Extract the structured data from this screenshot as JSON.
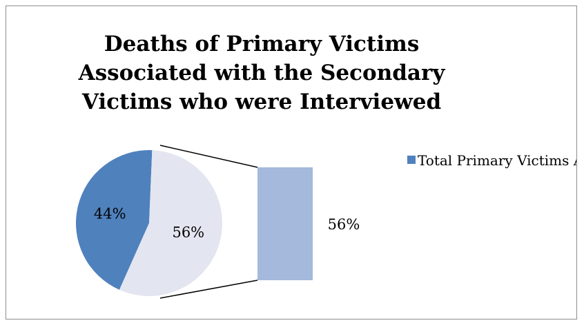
{
  "chart_data": {
    "type": "pie",
    "title": "Deaths of Primary Victims Associated with the Secondary Victims who were Interviewed",
    "subtype": "pie-of-pie",
    "slices": [
      {
        "value": 44,
        "label": "44%",
        "color": "#4f81bd"
      },
      {
        "value": 56,
        "label": "56%",
        "color": "#e3e6f0"
      }
    ],
    "secondary_bar": {
      "value": 56,
      "label": "56%",
      "color": "#a5b9dc"
    },
    "legend": [
      {
        "label": "Total Primary Victims Alive",
        "color": "#4f81bd"
      }
    ],
    "legend_position": "right"
  }
}
